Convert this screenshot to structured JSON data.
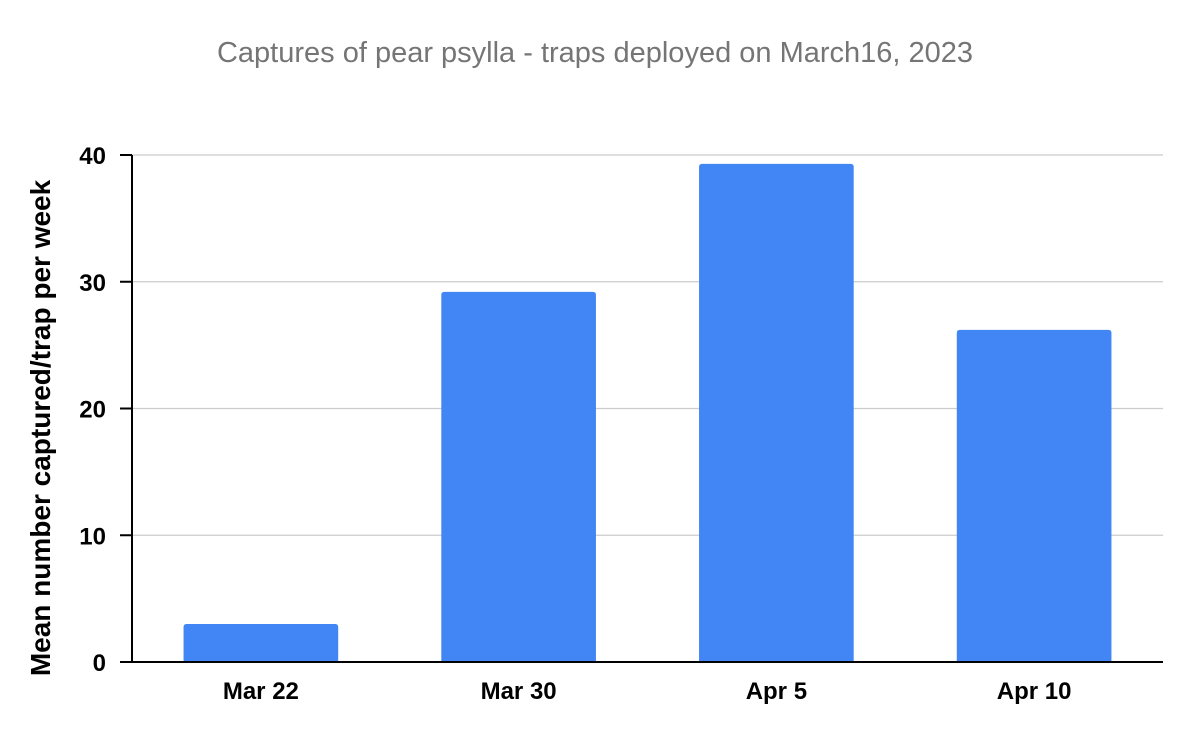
{
  "chart_data": {
    "type": "bar",
    "title": "Captures of pear psylla - traps deployed on March16, 2023",
    "xlabel": "",
    "ylabel": "Mean number captured/trap per week",
    "categories": [
      "Mar 22",
      "Mar 30",
      "Apr 5",
      "Apr 10"
    ],
    "values": [
      3,
      29.2,
      39.3,
      26.2
    ],
    "ylim": [
      0,
      40
    ],
    "yticks": [
      "0",
      "10",
      "20",
      "30",
      "40"
    ],
    "grid": true,
    "legend": "none",
    "colors": {
      "bar": "#4285f4",
      "grid": "#cccccc",
      "axis": "#000000",
      "title": "#757575"
    }
  }
}
